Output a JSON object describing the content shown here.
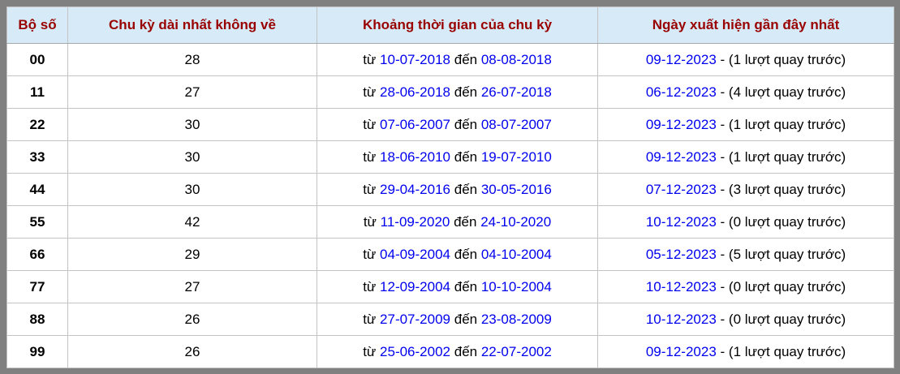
{
  "colors": {
    "frame": "#808080",
    "header_bg": "#d6ebf7",
    "header_text": "#990000",
    "link_blue": "#0000ee",
    "grid_line": "#c3c3c3",
    "body_text": "#000000"
  },
  "labels": {
    "from": "từ",
    "to": "đến"
  },
  "table": {
    "columns": [
      {
        "label": "Bộ số"
      },
      {
        "label": "Chu kỳ dài nhất không về"
      },
      {
        "label": "Khoảng thời gian của chu kỳ"
      },
      {
        "label": "Ngày xuất hiện gần đây nhất"
      }
    ],
    "rows": [
      {
        "pair": "00",
        "cycle": "28",
        "from_date": "10-07-2018",
        "to_date": "08-08-2018",
        "last_date": "09-12-2023",
        "last_note": "- (1 lượt quay trước)"
      },
      {
        "pair": "11",
        "cycle": "27",
        "from_date": "28-06-2018",
        "to_date": "26-07-2018",
        "last_date": "06-12-2023",
        "last_note": "- (4 lượt quay trước)"
      },
      {
        "pair": "22",
        "cycle": "30",
        "from_date": "07-06-2007",
        "to_date": "08-07-2007",
        "last_date": "09-12-2023",
        "last_note": "- (1 lượt quay trước)"
      },
      {
        "pair": "33",
        "cycle": "30",
        "from_date": "18-06-2010",
        "to_date": "19-07-2010",
        "last_date": "09-12-2023",
        "last_note": "- (1 lượt quay trước)"
      },
      {
        "pair": "44",
        "cycle": "30",
        "from_date": "29-04-2016",
        "to_date": "30-05-2016",
        "last_date": "07-12-2023",
        "last_note": "- (3 lượt quay trước)"
      },
      {
        "pair": "55",
        "cycle": "42",
        "from_date": "11-09-2020",
        "to_date": "24-10-2020",
        "last_date": "10-12-2023",
        "last_note": "- (0 lượt quay trước)"
      },
      {
        "pair": "66",
        "cycle": "29",
        "from_date": "04-09-2004",
        "to_date": "04-10-2004",
        "last_date": "05-12-2023",
        "last_note": "- (5 lượt quay trước)"
      },
      {
        "pair": "77",
        "cycle": "27",
        "from_date": "12-09-2004",
        "to_date": "10-10-2004",
        "last_date": "10-12-2023",
        "last_note": "- (0 lượt quay trước)"
      },
      {
        "pair": "88",
        "cycle": "26",
        "from_date": "27-07-2009",
        "to_date": "23-08-2009",
        "last_date": "10-12-2023",
        "last_note": "- (0 lượt quay trước)"
      },
      {
        "pair": "99",
        "cycle": "26",
        "from_date": "25-06-2002",
        "to_date": "22-07-2002",
        "last_date": "09-12-2023",
        "last_note": "- (1 lượt quay trước)"
      }
    ]
  }
}
